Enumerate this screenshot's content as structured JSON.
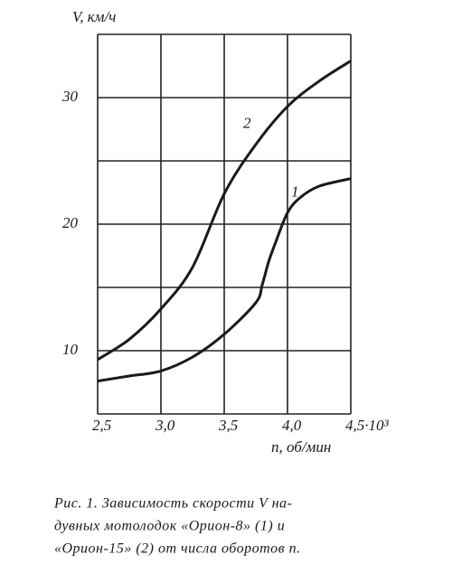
{
  "chart_data": {
    "type": "line",
    "y_label": "V, км/ч",
    "x_label": "n, об/мин",
    "caption": [
      "Рис. 1. Зависимость скорости V на-",
      "дувных мотолодок «Орион-8» (1) и",
      "«Орион-15» (2) от числа оборотов n."
    ],
    "xlim": [
      2.5,
      4.5
    ],
    "ylim": [
      5,
      35
    ],
    "xticks": [
      {
        "value": 2.5,
        "label": "2,5"
      },
      {
        "value": 3.0,
        "label": "3,0"
      },
      {
        "value": 3.5,
        "label": "3,5"
      },
      {
        "value": 4.0,
        "label": "4,0"
      },
      {
        "value": 4.5,
        "label": "4,5·10³"
      }
    ],
    "yticks": [
      {
        "value": 5,
        "label": null
      },
      10,
      {
        "value": 15,
        "label": null
      },
      20,
      {
        "value": 25,
        "label": null
      },
      30,
      {
        "value": 35,
        "label": null
      }
    ],
    "grid": true,
    "series": [
      {
        "name": "1",
        "color": "#1a1a1a",
        "x": [
          2.5,
          2.75,
          3.0,
          3.25,
          3.5,
          3.75,
          3.8,
          3.85,
          3.9,
          4.0,
          4.1,
          4.25,
          4.5
        ],
        "values": [
          7.6,
          8.0,
          8.4,
          9.5,
          11.3,
          13.8,
          15.2,
          17.0,
          18.4,
          20.9,
          22.1,
          23.0,
          23.6
        ]
      },
      {
        "name": "2",
        "color": "#1a1a1a",
        "x": [
          2.5,
          2.75,
          3.0,
          3.25,
          3.5,
          3.75,
          4.0,
          4.25,
          4.5
        ],
        "values": [
          9.3,
          10.9,
          13.3,
          16.6,
          22.4,
          26.3,
          29.3,
          31.3,
          32.9
        ]
      }
    ]
  }
}
